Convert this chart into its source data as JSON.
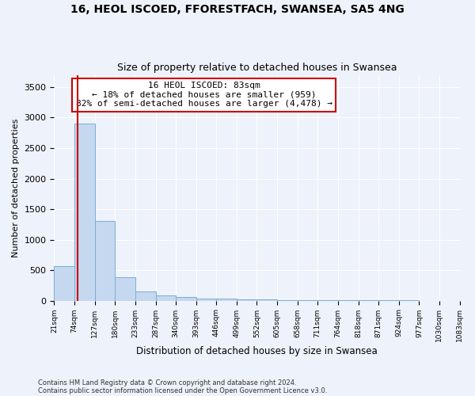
{
  "title1": "16, HEOL ISCOED, FFORESTFACH, SWANSEA, SA5 4NG",
  "title2": "Size of property relative to detached houses in Swansea",
  "xlabel": "Distribution of detached houses by size in Swansea",
  "ylabel": "Number of detached properties",
  "footnote1": "Contains HM Land Registry data © Crown copyright and database right 2024.",
  "footnote2": "Contains public sector information licensed under the Open Government Licence v3.0.",
  "bin_edges": [
    21,
    74,
    127,
    180,
    233,
    287,
    340,
    393,
    446,
    499,
    552,
    605,
    658,
    711,
    764,
    818,
    871,
    924,
    977,
    1030,
    1083
  ],
  "bar_heights": [
    570,
    2900,
    1310,
    390,
    155,
    85,
    60,
    40,
    30,
    20,
    15,
    10,
    8,
    6,
    5,
    4,
    3,
    2,
    1,
    1
  ],
  "bar_color": "#c5d8f0",
  "bar_edge_color": "#7aafd4",
  "property_size": 83,
  "property_label": "16 HEOL ISCOED: 83sqm",
  "annotation_line1": "← 18% of detached houses are smaller (959)",
  "annotation_line2": "82% of semi-detached houses are larger (4,478) →",
  "red_line_color": "#cc0000",
  "annotation_box_edge": "#cc0000",
  "ylim": [
    0,
    3700
  ],
  "yticks": [
    0,
    500,
    1000,
    1500,
    2000,
    2500,
    3000,
    3500
  ],
  "background_color": "#eef2fa",
  "grid_color": "#ffffff",
  "title1_fontsize": 10,
  "title2_fontsize": 9
}
